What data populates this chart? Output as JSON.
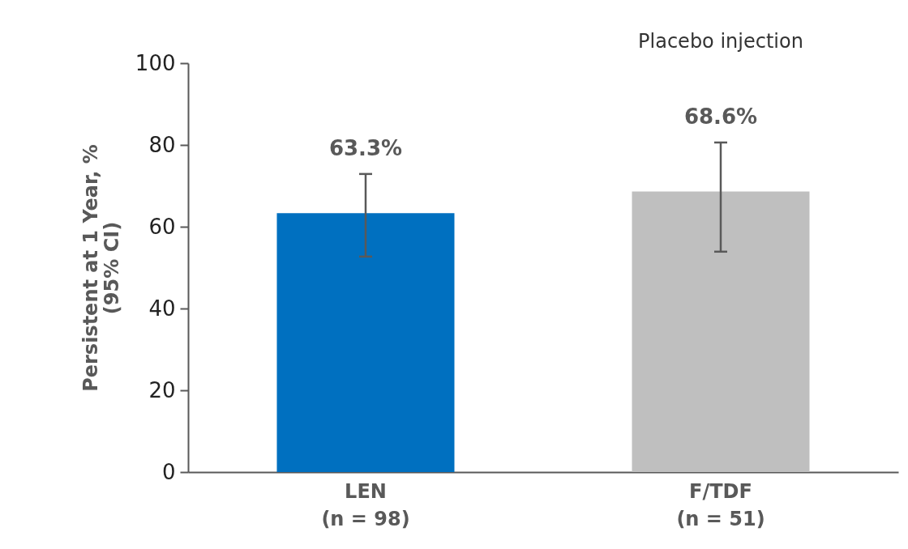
{
  "chart_data": {
    "type": "bar",
    "categories": [
      "LEN\n(n = 98)",
      "F/TDF\n(n = 51)"
    ],
    "values": [
      63.3,
      68.6
    ],
    "colors": [
      "#0070c0",
      "#bfbfbf"
    ],
    "errors": [
      [
        52.7,
        72.9
      ],
      [
        53.9,
        80.6
      ]
    ],
    "value_labels": [
      "63.3%",
      "68.6%"
    ],
    "ylabel": "Persistent at 1 Year, %\n(95% CI)",
    "ylim": [
      0,
      100
    ],
    "yticks": [
      0,
      20,
      40,
      60,
      80,
      100
    ],
    "annotations": [
      "Placebo injection"
    ],
    "grid": false
  }
}
